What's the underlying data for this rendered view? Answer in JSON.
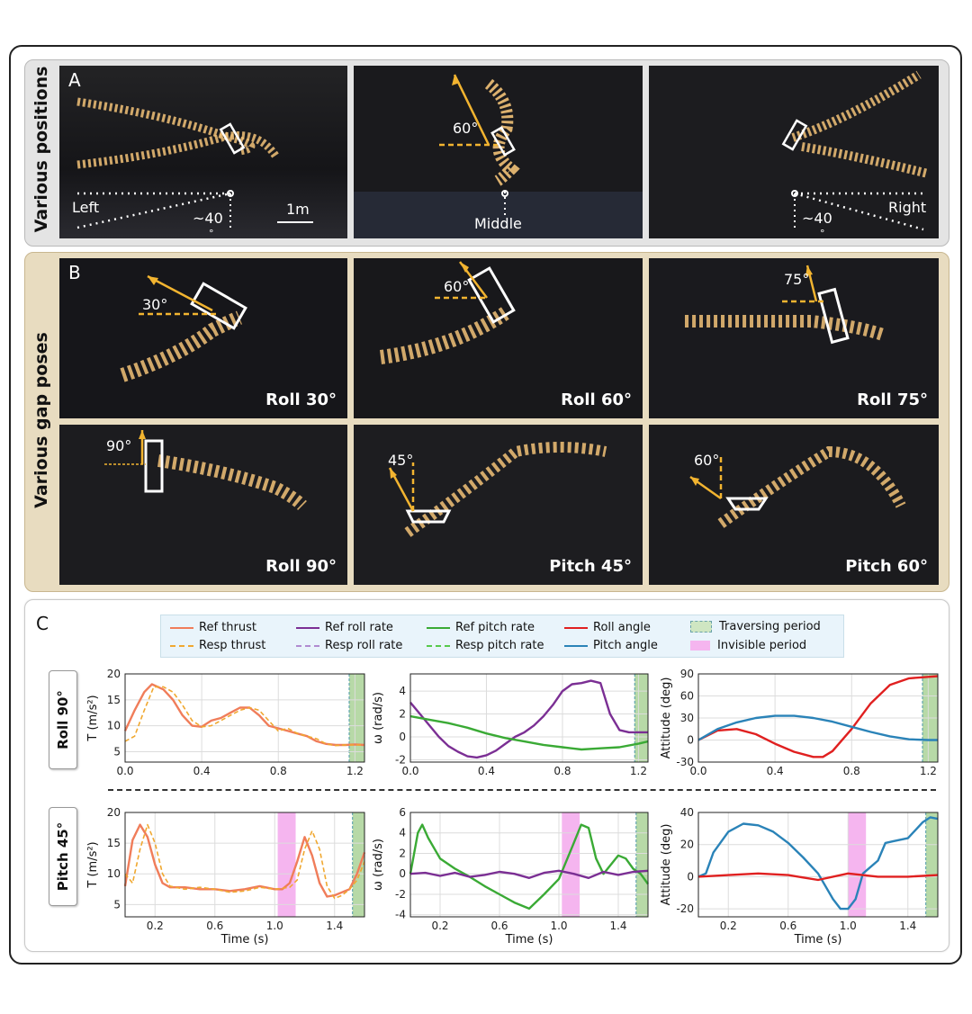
{
  "panelA": {
    "letter": "A",
    "side_label": "Various positions",
    "left": {
      "label": "Left",
      "angle": "~40",
      "deg": "°",
      "scale": "1m"
    },
    "middle": {
      "label": "Middle",
      "angle": "60°"
    },
    "right": {
      "label": "Right",
      "angle": "~40",
      "deg": "°"
    }
  },
  "panelB": {
    "letter": "B",
    "side_label": "Various gap poses",
    "tiles": [
      {
        "caption": "Roll 30°",
        "angle": "30°"
      },
      {
        "caption": "Roll 60°",
        "angle": "60°"
      },
      {
        "caption": "Roll 75°",
        "angle": "75°"
      },
      {
        "caption": "Roll 90°",
        "angle": "90°"
      },
      {
        "caption": "Pitch 45°",
        "angle": "45°"
      },
      {
        "caption": "Pitch 60°",
        "angle": "60°"
      }
    ]
  },
  "panelC": {
    "letter": "C",
    "legend": {
      "ref_thrust": "Ref thrust",
      "resp_thrust": "Resp thrust",
      "ref_roll_rate": "Ref roll rate",
      "resp_roll_rate": "Resp roll rate",
      "ref_pitch_rate": "Ref pitch rate",
      "resp_pitch_rate": "Resp pitch rate",
      "roll_angle": "Roll angle",
      "pitch_angle": "Pitch angle",
      "traversing": "Traversing period",
      "invisible": "Invisible period"
    },
    "row1_tag": "Roll 90°",
    "row2_tag": "Pitch 45°",
    "colors": {
      "ref_thrust": "#f07d5a",
      "resp_thrust": "#f0a830",
      "roll_rate": "#7b2f94",
      "resp_roll_rate": "#b08ad0",
      "pitch_rate": "#3aaa35",
      "resp_pitch_rate": "#56c94c",
      "roll_angle": "#e02020",
      "pitch_angle": "#2a83b8",
      "traversing": "#b7d9a7",
      "invisible": "#f5b5ef"
    }
  },
  "chart_data": [
    {
      "type": "line",
      "id": "r1_thrust",
      "xlabel": "",
      "ylabel": "T (m/s²)",
      "xlim": [
        0,
        1.25
      ],
      "ylim": [
        3,
        20
      ],
      "xticks": [
        0.0,
        0.4,
        0.8,
        1.2
      ],
      "xticklabels": [
        "0.0",
        "0.4",
        "0.8",
        "1.2"
      ],
      "yticks": [
        5,
        10,
        15,
        20
      ],
      "yticklabels": [
        "5",
        "10",
        "15",
        "20"
      ],
      "traversing": [
        1.17,
        1.25
      ],
      "series": [
        {
          "name": "Ref thrust",
          "x": [
            0,
            0.05,
            0.1,
            0.14,
            0.2,
            0.25,
            0.3,
            0.35,
            0.4,
            0.45,
            0.5,
            0.55,
            0.6,
            0.65,
            0.7,
            0.75,
            0.8,
            0.85,
            0.9,
            0.95,
            1.0,
            1.05,
            1.1,
            1.15,
            1.2,
            1.25
          ],
          "y": [
            9,
            13,
            16.5,
            18,
            17,
            15,
            12,
            10,
            9.8,
            11,
            11.5,
            12.5,
            13.5,
            13.5,
            12,
            10,
            9.5,
            9,
            8.5,
            8,
            7,
            6.5,
            6.3,
            6.3,
            6.4,
            6.3
          ]
        },
        {
          "name": "Resp thrust",
          "dash": true,
          "x": [
            0,
            0.05,
            0.1,
            0.15,
            0.2,
            0.25,
            0.3,
            0.35,
            0.4,
            0.45,
            0.5,
            0.55,
            0.6,
            0.65,
            0.7,
            0.75,
            0.8,
            0.85,
            0.9,
            0.95,
            1.0,
            1.05,
            1.1,
            1.15,
            1.2,
            1.25
          ],
          "y": [
            7,
            8,
            13,
            17.5,
            17.5,
            16.5,
            14,
            11,
            9.8,
            10,
            11,
            12,
            13,
            13.5,
            13,
            11,
            9,
            9.5,
            8.5,
            8,
            7.5,
            6.5,
            6.2,
            6.3,
            6.3,
            6.3
          ]
        }
      ]
    },
    {
      "type": "line",
      "id": "r1_rate",
      "xlabel": "",
      "ylabel": "ω (rad/s)",
      "xlim": [
        0,
        1.25
      ],
      "ylim": [
        -2.2,
        5.5
      ],
      "xticks": [
        0.0,
        0.4,
        0.8,
        1.2
      ],
      "xticklabels": [
        "0.0",
        "0.4",
        "0.8",
        "1.2"
      ],
      "yticks": [
        -2,
        0,
        2,
        4
      ],
      "yticklabels": [
        "-2",
        "0",
        "2",
        "4"
      ],
      "traversing": [
        1.18,
        1.25
      ],
      "series": [
        {
          "name": "Ref roll rate",
          "x": [
            0,
            0.05,
            0.1,
            0.15,
            0.2,
            0.25,
            0.3,
            0.35,
            0.4,
            0.45,
            0.5,
            0.55,
            0.6,
            0.65,
            0.7,
            0.75,
            0.8,
            0.85,
            0.9,
            0.95,
            1.0,
            1.05,
            1.1,
            1.15,
            1.2,
            1.25
          ],
          "y": [
            3,
            2,
            1,
            0,
            -0.8,
            -1.3,
            -1.7,
            -1.8,
            -1.6,
            -1.2,
            -0.6,
            0,
            0.4,
            1,
            1.8,
            2.8,
            4,
            4.6,
            4.7,
            4.9,
            4.7,
            2,
            0.6,
            0.4,
            0.4,
            0.4
          ]
        },
        {
          "name": "Ref pitch rate",
          "x": [
            0,
            0.1,
            0.2,
            0.3,
            0.4,
            0.5,
            0.6,
            0.7,
            0.8,
            0.9,
            1.0,
            1.1,
            1.2,
            1.25
          ],
          "y": [
            1.8,
            1.5,
            1.2,
            0.8,
            0.3,
            -0.1,
            -0.4,
            -0.7,
            -0.9,
            -1.1,
            -1.0,
            -0.9,
            -0.6,
            -0.4
          ]
        }
      ]
    },
    {
      "type": "line",
      "id": "r1_att",
      "xlabel": "",
      "ylabel": "Attitude (deg)",
      "xlim": [
        0,
        1.25
      ],
      "ylim": [
        -30,
        90
      ],
      "xticks": [
        0.0,
        0.4,
        0.8,
        1.2
      ],
      "xticklabels": [
        "0.0",
        "0.4",
        "0.8",
        "1.2"
      ],
      "yticks": [
        -30,
        0,
        30,
        60,
        90
      ],
      "yticklabels": [
        "-30",
        "0",
        "30",
        "60",
        "90"
      ],
      "traversing": [
        1.17,
        1.25
      ],
      "series": [
        {
          "name": "Roll angle",
          "x": [
            0,
            0.1,
            0.2,
            0.3,
            0.4,
            0.5,
            0.6,
            0.65,
            0.7,
            0.8,
            0.9,
            1.0,
            1.1,
            1.2,
            1.25
          ],
          "y": [
            0,
            13,
            15,
            8,
            -5,
            -16,
            -23,
            -23,
            -15,
            15,
            50,
            75,
            84,
            86,
            87
          ]
        },
        {
          "name": "Pitch angle",
          "x": [
            0,
            0.1,
            0.2,
            0.3,
            0.4,
            0.5,
            0.6,
            0.7,
            0.8,
            0.9,
            1.0,
            1.1,
            1.2,
            1.25
          ],
          "y": [
            0,
            15,
            24,
            30,
            33,
            33,
            30,
            25,
            18,
            11,
            5,
            1,
            0,
            0
          ]
        }
      ]
    },
    {
      "type": "line",
      "id": "r2_thrust",
      "xlabel": "Time (s)",
      "ylabel": "T (m/s²)",
      "xlim": [
        0,
        1.6
      ],
      "ylim": [
        3,
        20
      ],
      "xticks": [
        0.2,
        0.6,
        1.0,
        1.4
      ],
      "xticklabels": [
        "0.2",
        "0.6",
        "1.0",
        "1.4"
      ],
      "yticks": [
        5,
        10,
        15,
        20
      ],
      "yticklabels": [
        "5",
        "10",
        "15",
        "20"
      ],
      "traversing": [
        1.52,
        1.6
      ],
      "invisible": [
        1.02,
        1.14
      ],
      "series": [
        {
          "name": "Ref thrust",
          "x": [
            0,
            0.05,
            0.1,
            0.15,
            0.2,
            0.25,
            0.3,
            0.4,
            0.5,
            0.6,
            0.7,
            0.8,
            0.9,
            1.0,
            1.05,
            1.1,
            1.15,
            1.2,
            1.25,
            1.3,
            1.35,
            1.4,
            1.45,
            1.5,
            1.55,
            1.6
          ],
          "y": [
            8,
            15.5,
            18,
            16,
            11.5,
            8.5,
            7.8,
            7.8,
            7.5,
            7.5,
            7.2,
            7.5,
            8,
            7.5,
            7.5,
            8.5,
            12,
            16,
            13,
            8.5,
            6.3,
            6.5,
            7,
            7.5,
            10,
            13.5
          ]
        },
        {
          "name": "Resp thrust",
          "dash": true,
          "x": [
            0,
            0.05,
            0.1,
            0.15,
            0.2,
            0.25,
            0.3,
            0.4,
            0.5,
            0.6,
            0.7,
            0.8,
            0.9,
            1.0,
            1.1,
            1.15,
            1.2,
            1.25,
            1.3,
            1.35,
            1.4,
            1.45,
            1.5,
            1.55,
            1.6
          ],
          "y": [
            10,
            8.5,
            14,
            18,
            15,
            10,
            8,
            7.5,
            7.8,
            7.5,
            7,
            7.2,
            7.8,
            7.5,
            7.8,
            9,
            14,
            17,
            14,
            8,
            6,
            6.5,
            7.5,
            9,
            12
          ]
        }
      ]
    },
    {
      "type": "line",
      "id": "r2_rate",
      "xlabel": "Time (s)",
      "ylabel": "ω (rad/s)",
      "xlim": [
        0,
        1.6
      ],
      "ylim": [
        -4.2,
        6
      ],
      "xticks": [
        0.2,
        0.6,
        1.0,
        1.4
      ],
      "xticklabels": [
        "0.2",
        "0.6",
        "1.0",
        "1.4"
      ],
      "yticks": [
        -4,
        -2,
        0,
        2,
        4,
        6
      ],
      "yticklabels": [
        "-4",
        "-2",
        "0",
        "2",
        "4",
        "6"
      ],
      "traversing": [
        1.52,
        1.6
      ],
      "invisible": [
        1.02,
        1.14
      ],
      "series": [
        {
          "name": "Ref pitch rate",
          "x": [
            0,
            0.05,
            0.08,
            0.12,
            0.2,
            0.3,
            0.4,
            0.5,
            0.6,
            0.7,
            0.8,
            0.9,
            1.0,
            1.1,
            1.15,
            1.2,
            1.25,
            1.3,
            1.4,
            1.45,
            1.5,
            1.55,
            1.6
          ],
          "y": [
            0,
            4,
            4.8,
            3.5,
            1.5,
            0.5,
            -0.3,
            -1.2,
            -2,
            -2.8,
            -3.4,
            -2,
            -0.5,
            3,
            4.8,
            4.5,
            1.5,
            0,
            1.8,
            1.5,
            0.5,
            0,
            -1
          ]
        },
        {
          "name": "Ref roll rate",
          "x": [
            0,
            0.1,
            0.2,
            0.3,
            0.4,
            0.5,
            0.6,
            0.7,
            0.8,
            0.9,
            1.0,
            1.1,
            1.2,
            1.3,
            1.4,
            1.5,
            1.6
          ],
          "y": [
            0,
            0.1,
            -0.2,
            0.1,
            -0.3,
            -0.1,
            0.2,
            0,
            -0.4,
            0.1,
            0.3,
            0,
            -0.4,
            0.2,
            -0.1,
            0.2,
            0.3
          ]
        }
      ]
    },
    {
      "type": "line",
      "id": "r2_att",
      "xlabel": "Time (s)",
      "ylabel": "Attitude (deg)",
      "xlim": [
        0,
        1.6
      ],
      "ylim": [
        -25,
        40
      ],
      "xticks": [
        0.2,
        0.6,
        1.0,
        1.4
      ],
      "xticklabels": [
        "0.2",
        "0.6",
        "1.0",
        "1.4"
      ],
      "yticks": [
        -20,
        0,
        20,
        40
      ],
      "yticklabels": [
        "-20",
        "0",
        "20",
        "40"
      ],
      "traversing": [
        1.52,
        1.6
      ],
      "invisible": [
        1.0,
        1.12
      ],
      "series": [
        {
          "name": "Pitch angle",
          "x": [
            0,
            0.05,
            0.1,
            0.2,
            0.3,
            0.4,
            0.5,
            0.6,
            0.7,
            0.8,
            0.9,
            0.95,
            1.0,
            1.05,
            1.1,
            1.2,
            1.25,
            1.3,
            1.4,
            1.5,
            1.55,
            1.6
          ],
          "y": [
            0,
            2,
            15,
            28,
            33,
            32,
            28,
            21,
            12,
            2,
            -14,
            -20,
            -20,
            -14,
            2,
            10,
            21,
            22,
            24,
            34,
            37,
            36
          ]
        },
        {
          "name": "Roll angle",
          "x": [
            0,
            0.2,
            0.4,
            0.6,
            0.8,
            1.0,
            1.2,
            1.4,
            1.6
          ],
          "y": [
            0,
            1,
            2,
            1,
            -2,
            2,
            0,
            0,
            1
          ]
        }
      ]
    }
  ]
}
